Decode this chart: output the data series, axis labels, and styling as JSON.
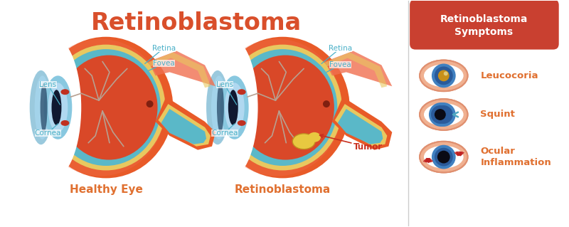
{
  "title": "Retinoblastoma",
  "title_color": "#d94f2b",
  "title_fontsize": 24,
  "bg_color": "#ffffff",
  "symptoms_box_color": "#c94030",
  "symptoms_title": "Retinoblastoma\nSymptoms",
  "symptoms_title_color": "#ffffff",
  "symptoms": [
    "Leucocoria",
    "Squint",
    "Ocular\nInflammation"
  ],
  "symptom_color": "#e07030",
  "label_color": "#4ab0c8",
  "label_fontsize": 7.5,
  "sclera_color": "#e85a28",
  "sclera_light": "#f07050",
  "choroid_color": "#e8c860",
  "retina_layer": "#5ab8c8",
  "inner_eye": "#d94828",
  "lens_outer": "#88c8e0",
  "lens_inner": "#2060a0",
  "lens_dark": "#101830",
  "optic_flap_color": "#e85a28",
  "optic_nerve_color": "#4ab8c8",
  "optic_nerve_yellow": "#e8c860",
  "vessel_color": "#c8a080",
  "fovea_color": "#802010",
  "tumor_color": "#e8c840",
  "tumor_edge": "#c09020",
  "tumor_label_color": "#c83020",
  "healthy_label": "Healthy Eye",
  "retino_label": "Retinoblastoma",
  "sub_label_color": "#e07030",
  "sub_label_fontsize": 11,
  "divider_color": "#cccccc",
  "iris_outer": "#4080c0",
  "iris_mid": "#2a5a9a",
  "iris_dark": "#0a0a14",
  "pupil_gold": "#c8901a",
  "eyelid_color": "#f0b090",
  "eyelid_edge": "#e09070",
  "arrow_color": "#50a8c0"
}
